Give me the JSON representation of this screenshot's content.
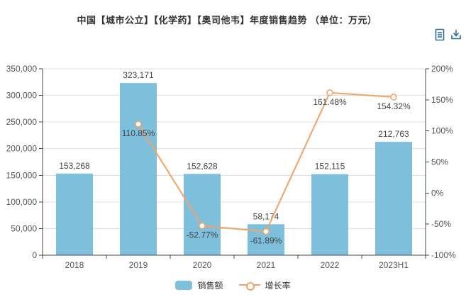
{
  "title": "中国【城市公立】【化学药】【奥司他韦】年度销售趋势 （单位：万元）",
  "toolbar": {
    "icon_color": "#2A6CA6",
    "icons": [
      {
        "name": "data-view-icon"
      },
      {
        "name": "save-image-icon"
      }
    ]
  },
  "chart_data": {
    "type": "bar+line",
    "title": "中国【城市公立】【化学药】【奥司他韦】年度销售趋势 （单位：万元）",
    "categories": [
      "2018",
      "2019",
      "2020",
      "2021",
      "2022",
      "2023H1"
    ],
    "series": [
      {
        "name": "销售额",
        "type": "bar",
        "axis": "left",
        "color": "#7EC0DC",
        "values": [
          153268,
          323171,
          152628,
          58174,
          152115,
          212763
        ],
        "labels": [
          "153,268",
          "323,171",
          "152,628",
          "58,174",
          "152,115",
          "212,763"
        ]
      },
      {
        "name": "增长率",
        "type": "line",
        "axis": "right",
        "color": "#F2A264",
        "values": [
          null,
          110.85,
          -52.77,
          -61.89,
          161.48,
          154.32
        ],
        "labels": [
          "",
          "110.85%",
          "-52.77%",
          "-61.89%",
          "161.48%",
          "154.32%"
        ]
      }
    ],
    "left_axis": {
      "min": 0,
      "max": 350000,
      "step": 50000,
      "tick_labels": [
        "0",
        "50,000",
        "100,000",
        "150,000",
        "200,000",
        "250,000",
        "300,000",
        "350,000"
      ]
    },
    "right_axis": {
      "min": -100,
      "max": 200,
      "step": 50,
      "tick_labels": [
        "-100%",
        "-50%",
        "0%",
        "50%",
        "100%",
        "150%",
        "200%"
      ]
    },
    "grid": true,
    "legend_position": "bottom"
  }
}
